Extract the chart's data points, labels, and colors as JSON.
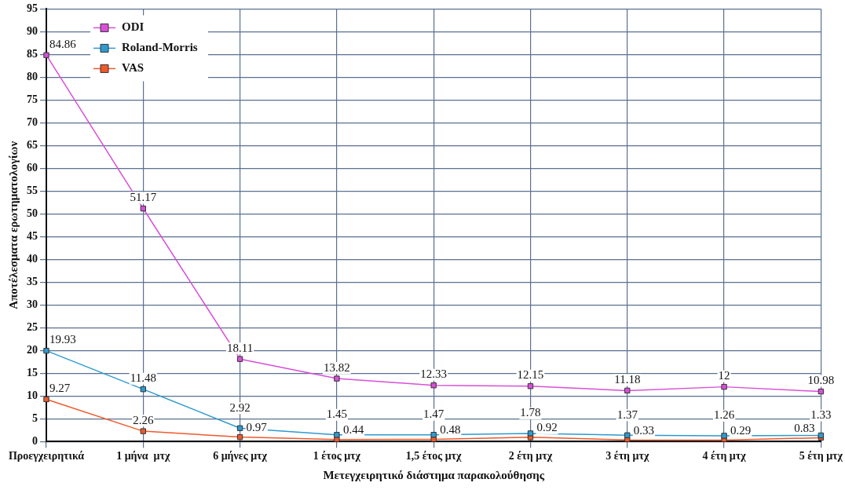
{
  "chart_data": {
    "type": "line",
    "xlabel": "Μετεγχειρητικό διάστημα παρακολούθησης",
    "ylabel": "Αποτέλεσματα ερωτηματολογίων",
    "categories": [
      "Προεγχειρητικά",
      "1 μήνα  μτχ",
      "6 μήνες μτχ",
      "1 έτος μτχ",
      "1,5 έτος μτχ",
      "2 έτη μτχ",
      "3 έτη μτχ",
      "4 έτη μτχ",
      "5 έτη μτχ"
    ],
    "series": [
      {
        "name": "ODI",
        "color": "#d94fd9",
        "values": [
          84.86,
          51.17,
          18.11,
          13.82,
          12.33,
          12.15,
          11.18,
          12,
          10.98
        ]
      },
      {
        "name": "Roland-Morris",
        "color": "#2e9ad0",
        "values": [
          19.93,
          11.48,
          2.92,
          1.45,
          1.47,
          1.78,
          1.37,
          1.26,
          1.33
        ]
      },
      {
        "name": "VAS",
        "color": "#ee5a2a",
        "values": [
          9.27,
          2.26,
          0.97,
          0.44,
          0.48,
          0.92,
          0.33,
          0.29,
          0.83
        ]
      }
    ],
    "ylim": [
      0,
      95
    ],
    "yticks": [
      0,
      5,
      10,
      15,
      20,
      25,
      30,
      35,
      40,
      45,
      50,
      55,
      60,
      65,
      70,
      75,
      80,
      85,
      90,
      95
    ],
    "grid": true,
    "legend": "top left",
    "marker": "square",
    "data_labels": true
  }
}
